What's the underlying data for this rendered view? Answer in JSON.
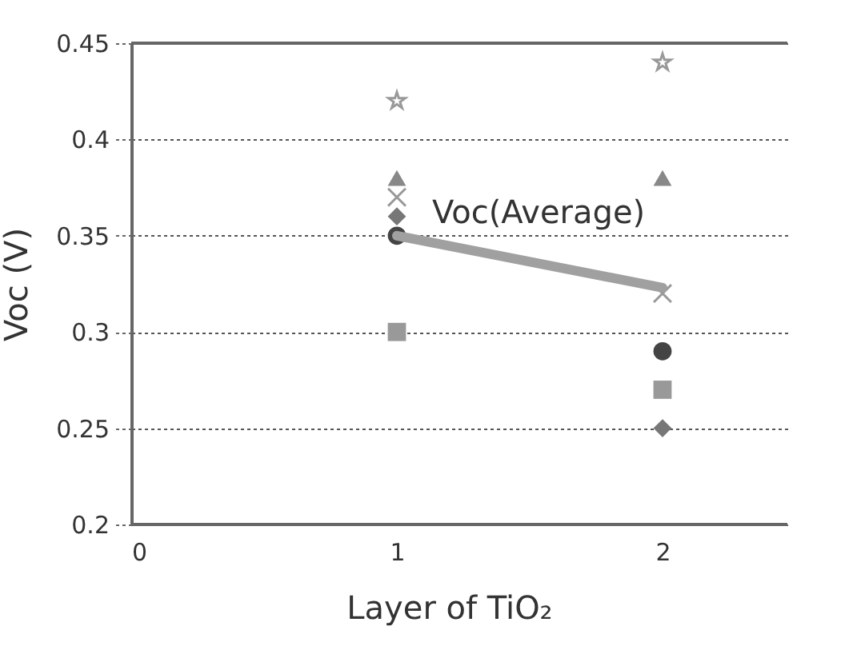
{
  "chart_data": {
    "type": "scatter",
    "xlabel": "Layer of TiO₂",
    "ylabel": "Voc (V)",
    "xlim": [
      0,
      2.47
    ],
    "xticks": [
      0,
      1,
      2
    ],
    "ylim": [
      0.2,
      0.45
    ],
    "yticks": [
      0.2,
      0.25,
      0.3,
      0.35,
      0.4,
      0.45
    ],
    "grid": "y",
    "x": [
      1,
      2
    ],
    "series": [
      {
        "marker": "circle",
        "color": "#444444",
        "values": [
          0.35,
          0.29
        ]
      },
      {
        "marker": "square",
        "color": "#999999",
        "values": [
          0.3,
          0.27
        ]
      },
      {
        "marker": "triangle",
        "color": "#888888",
        "values": [
          0.38,
          0.38
        ]
      },
      {
        "marker": "diamond",
        "color": "#777777",
        "values": [
          0.36,
          0.25
        ]
      },
      {
        "marker": "star",
        "color": "#999999",
        "values": [
          0.42,
          0.44
        ]
      },
      {
        "marker": "cross",
        "color": "#999999",
        "values": [
          0.37,
          0.32
        ]
      },
      {
        "type": "line",
        "name": "Voc(Average)",
        "color": "#a0a0a0",
        "values": [
          0.35,
          0.323
        ]
      }
    ]
  }
}
